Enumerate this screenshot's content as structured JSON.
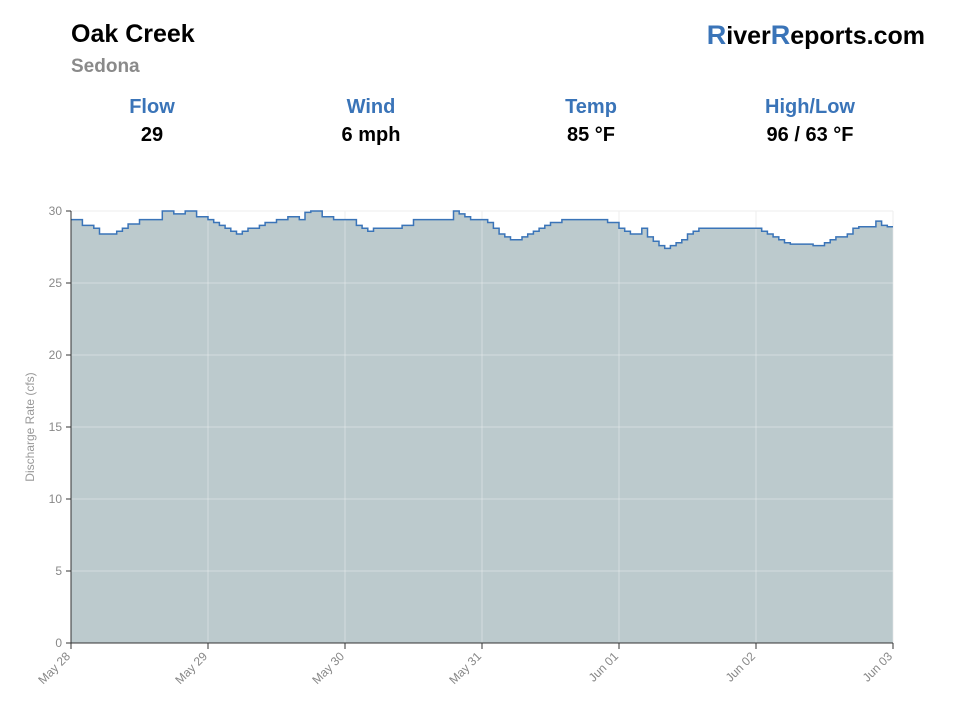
{
  "header": {
    "river_name": "Oak Creek",
    "location": "Sedona",
    "brand": {
      "r1": "R",
      "part1": "iver",
      "r2": "R",
      "part2": "eports.com"
    },
    "accent_color": "#3a74b8"
  },
  "stats": [
    {
      "label": "Flow",
      "value": "29"
    },
    {
      "label": "Wind",
      "value": "6 mph"
    },
    {
      "label": "Temp",
      "value": "85 °F"
    },
    {
      "label": "High/Low",
      "value": "96 / 63 °F"
    }
  ],
  "chart_data": {
    "type": "area",
    "ylabel": "Discharge Rate (cfs)",
    "xlabel": "",
    "ylim": [
      0,
      30
    ],
    "yticks": [
      0,
      5,
      10,
      15,
      20,
      25,
      30
    ],
    "xlim": [
      "2023-05-28T00:00",
      "2023-06-03T00:00"
    ],
    "xticks": [
      {
        "t": "2023-05-28T00:00",
        "label": "May 28"
      },
      {
        "t": "2023-05-29T00:00",
        "label": "May 29"
      },
      {
        "t": "2023-05-30T00:00",
        "label": "May 30"
      },
      {
        "t": "2023-05-31T00:00",
        "label": "May 31"
      },
      {
        "t": "2023-06-01T00:00",
        "label": "Jun 01"
      },
      {
        "t": "2023-06-02T00:00",
        "label": "Jun 02"
      },
      {
        "t": "2023-06-03T00:00",
        "label": "Jun 03"
      }
    ],
    "grid": true,
    "line_color": "#3a74b8",
    "fill_color": "#bccacd",
    "series": [
      {
        "x": [
          "2023-05-28T00:00",
          "2023-05-28T02:00",
          "2023-05-28T04:00",
          "2023-05-28T05:00",
          "2023-05-28T06:00",
          "2023-05-28T08:00",
          "2023-05-28T09:00",
          "2023-05-28T10:00",
          "2023-05-28T12:00",
          "2023-05-28T14:00",
          "2023-05-28T16:00",
          "2023-05-28T18:00",
          "2023-05-28T20:00",
          "2023-05-28T22:00",
          "2023-05-29T00:00",
          "2023-05-29T01:00",
          "2023-05-29T02:00",
          "2023-05-29T03:00",
          "2023-05-29T04:00",
          "2023-05-29T05:00",
          "2023-05-29T06:00",
          "2023-05-29T07:00",
          "2023-05-29T08:00",
          "2023-05-29T09:00",
          "2023-05-29T10:00",
          "2023-05-29T12:00",
          "2023-05-29T13:00",
          "2023-05-29T14:00",
          "2023-05-29T16:00",
          "2023-05-29T17:00",
          "2023-05-29T18:00",
          "2023-05-29T20:00",
          "2023-05-29T22:00",
          "2023-05-30T00:00",
          "2023-05-30T02:00",
          "2023-05-30T03:00",
          "2023-05-30T04:00",
          "2023-05-30T05:00",
          "2023-05-30T06:00",
          "2023-05-30T08:00",
          "2023-05-30T10:00",
          "2023-05-30T12:00",
          "2023-05-30T14:00",
          "2023-05-30T16:00",
          "2023-05-30T18:00",
          "2023-05-30T19:00",
          "2023-05-30T20:00",
          "2023-05-30T21:00",
          "2023-05-30T22:00",
          "2023-05-30T23:00",
          "2023-05-31T00:00",
          "2023-05-31T01:00",
          "2023-05-31T02:00",
          "2023-05-31T03:00",
          "2023-05-31T04:00",
          "2023-05-31T05:00",
          "2023-05-31T06:00",
          "2023-05-31T07:00",
          "2023-05-31T08:00",
          "2023-05-31T09:00",
          "2023-05-31T10:00",
          "2023-05-31T11:00",
          "2023-05-31T12:00",
          "2023-05-31T14:00",
          "2023-05-31T16:00",
          "2023-05-31T18:00",
          "2023-05-31T20:00",
          "2023-05-31T22:00",
          "2023-06-01T00:00",
          "2023-06-01T01:00",
          "2023-06-01T02:00",
          "2023-06-01T04:00",
          "2023-06-01T05:00",
          "2023-06-01T06:00",
          "2023-06-01T07:00",
          "2023-06-01T08:00",
          "2023-06-01T09:00",
          "2023-06-01T10:00",
          "2023-06-01T11:00",
          "2023-06-01T12:00",
          "2023-06-01T13:00",
          "2023-06-01T14:00",
          "2023-06-01T16:00",
          "2023-06-01T18:00",
          "2023-06-01T20:00",
          "2023-06-01T22:00",
          "2023-06-02T00:00",
          "2023-06-02T01:00",
          "2023-06-02T02:00",
          "2023-06-02T03:00",
          "2023-06-02T04:00",
          "2023-06-02T05:00",
          "2023-06-02T06:00",
          "2023-06-02T08:00",
          "2023-06-02T10:00",
          "2023-06-02T12:00",
          "2023-06-02T13:00",
          "2023-06-02T14:00",
          "2023-06-02T16:00",
          "2023-06-02T17:00",
          "2023-06-02T18:00",
          "2023-06-02T20:00",
          "2023-06-02T21:00",
          "2023-06-02T22:00",
          "2023-06-02T23:00"
        ],
        "values": [
          29.4,
          29.0,
          28.8,
          28.4,
          28.4,
          28.6,
          28.8,
          29.1,
          29.4,
          29.4,
          30.0,
          29.8,
          30.0,
          29.6,
          29.4,
          29.2,
          29.0,
          28.8,
          28.6,
          28.4,
          28.6,
          28.8,
          28.8,
          29.0,
          29.2,
          29.4,
          29.4,
          29.6,
          29.4,
          29.9,
          30.0,
          29.6,
          29.4,
          29.4,
          29.0,
          28.8,
          28.6,
          28.8,
          28.8,
          28.8,
          29.0,
          29.4,
          29.4,
          29.4,
          29.4,
          30.0,
          29.8,
          29.6,
          29.4,
          29.4,
          29.4,
          29.2,
          28.8,
          28.4,
          28.2,
          28.0,
          28.0,
          28.2,
          28.4,
          28.6,
          28.8,
          29.0,
          29.2,
          29.4,
          29.4,
          29.4,
          29.4,
          29.2,
          28.8,
          28.6,
          28.4,
          28.8,
          28.2,
          27.9,
          27.6,
          27.4,
          27.6,
          27.8,
          28.0,
          28.4,
          28.6,
          28.8,
          28.8,
          28.8,
          28.8,
          28.8,
          28.8,
          28.6,
          28.4,
          28.2,
          28.0,
          27.8,
          27.7,
          27.7,
          27.6,
          27.8,
          28.0,
          28.2,
          28.4,
          28.8,
          28.9,
          28.9,
          29.3,
          29.0,
          28.9
        ]
      }
    ]
  }
}
